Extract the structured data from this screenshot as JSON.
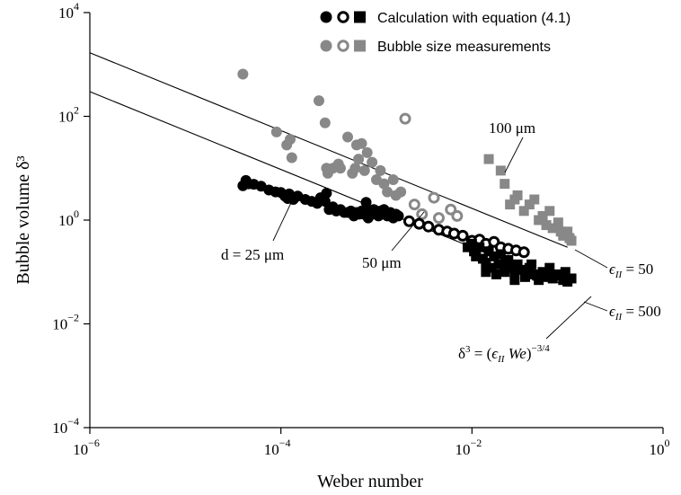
{
  "chart_data": {
    "type": "scatter",
    "xscale": "log",
    "yscale": "log",
    "xlim": [
      1e-06,
      1
    ],
    "ylim": [
      0.0001,
      10000.0
    ],
    "grid": false,
    "legend_position": "top-right",
    "xlabel": "Weber number",
    "ylabel": "Bubble volume δ³",
    "x_ticks": [
      {
        "value": 1e-06,
        "base": "10",
        "exp": "−6"
      },
      {
        "value": 0.0001,
        "base": "10",
        "exp": "−4"
      },
      {
        "value": 0.01,
        "base": "10",
        "exp": "−2"
      },
      {
        "value": 1,
        "base": "10",
        "exp": "0"
      }
    ],
    "y_ticks": [
      {
        "value": 0.0001,
        "base": "10",
        "exp": "−4"
      },
      {
        "value": 0.01,
        "base": "10",
        "exp": "−2"
      },
      {
        "value": 1,
        "base": "10",
        "exp": "0"
      },
      {
        "value": 100,
        "base": "10",
        "exp": "2"
      },
      {
        "value": 10000.0,
        "base": "10",
        "exp": "4"
      }
    ],
    "legend": [
      {
        "label": "Calculation with equation (4.1)",
        "color": "#000000",
        "marker_color": "#000000"
      },
      {
        "label": "Bubble size measurements",
        "color": "#888888",
        "marker_color": "#888888"
      }
    ],
    "series": [
      {
        "group": "calculation",
        "diameter": "25 μm",
        "marker": "filled-circle",
        "color": "#000000",
        "points": [
          [
            4e-05,
            4.6
          ],
          [
            4.3e-05,
            5.8
          ],
          [
            4.6e-05,
            5.0
          ],
          [
            5.2e-05,
            4.9
          ],
          [
            6.2e-05,
            4.5
          ],
          [
            7.5e-05,
            3.8
          ],
          [
            8.8e-05,
            3.5
          ],
          [
            0.0001,
            3.4
          ],
          [
            0.00011,
            2.9
          ],
          [
            0.000118,
            2.6
          ],
          [
            0.000122,
            3.2
          ],
          [
            0.000135,
            2.5
          ],
          [
            0.00015,
            2.9
          ],
          [
            0.00018,
            2.5
          ],
          [
            0.00021,
            2.3
          ],
          [
            0.00024,
            2.1
          ],
          [
            0.00026,
            2.7
          ],
          [
            0.00029,
            2.3
          ],
          [
            0.0003,
            3.3
          ],
          [
            0.00032,
            1.6
          ],
          [
            0.00035,
            1.8
          ],
          [
            0.00038,
            1.5
          ],
          [
            0.00042,
            1.6
          ],
          [
            0.00046,
            1.4
          ],
          [
            0.0005,
            1.4
          ],
          [
            0.00054,
            1.5
          ],
          [
            0.00058,
            1.2
          ],
          [
            0.00062,
            1.4
          ],
          [
            0.00066,
            1.3
          ],
          [
            0.0007,
            1.5
          ],
          [
            0.00074,
            1.3
          ],
          [
            0.00078,
            2.2
          ],
          [
            0.00082,
            1.1
          ],
          [
            0.00086,
            1.5
          ],
          [
            0.0009,
            1.3
          ],
          [
            0.00094,
            1.6
          ],
          [
            0.001,
            1.4
          ],
          [
            0.00105,
            1.2
          ],
          [
            0.0011,
            1.5
          ],
          [
            0.00115,
            1.3
          ],
          [
            0.0012,
            1.6
          ],
          [
            0.0013,
            1.2
          ],
          [
            0.0014,
            1.4
          ],
          [
            0.0015,
            1.1
          ],
          [
            0.0016,
            1.3
          ],
          [
            0.0017,
            1.2
          ]
        ]
      },
      {
        "group": "calculation",
        "diameter": "50 μm",
        "marker": "open-circle",
        "color": "#000000",
        "points": [
          [
            0.0022,
            0.95
          ],
          [
            0.0028,
            0.85
          ],
          [
            0.0035,
            0.75
          ],
          [
            0.0045,
            0.65
          ],
          [
            0.0055,
            0.6
          ],
          [
            0.0065,
            0.55
          ],
          [
            0.008,
            0.5
          ],
          [
            0.01,
            0.4
          ],
          [
            0.012,
            0.42
          ],
          [
            0.014,
            0.35
          ],
          [
            0.017,
            0.38
          ],
          [
            0.02,
            0.3
          ],
          [
            0.024,
            0.28
          ],
          [
            0.029,
            0.26
          ],
          [
            0.035,
            0.24
          ]
        ]
      },
      {
        "group": "calculation",
        "diameter": "100 μm",
        "marker": "filled-square",
        "color": "#000000",
        "points": [
          [
            0.009,
            0.3
          ],
          [
            0.01,
            0.35
          ],
          [
            0.0105,
            0.25
          ],
          [
            0.011,
            0.2
          ],
          [
            0.012,
            0.3
          ],
          [
            0.013,
            0.18
          ],
          [
            0.014,
            0.15
          ],
          [
            0.015,
            0.25
          ],
          [
            0.016,
            0.12
          ],
          [
            0.017,
            0.2
          ],
          [
            0.019,
            0.14
          ],
          [
            0.02,
            0.22
          ],
          [
            0.022,
            0.1
          ],
          [
            0.024,
            0.17
          ],
          [
            0.026,
            0.12
          ],
          [
            0.028,
            0.09
          ],
          [
            0.03,
            0.14
          ],
          [
            0.033,
            0.11
          ],
          [
            0.036,
            0.08
          ],
          [
            0.04,
            0.12
          ],
          [
            0.045,
            0.09
          ],
          [
            0.05,
            0.07
          ],
          [
            0.055,
            0.1
          ],
          [
            0.06,
            0.08
          ],
          [
            0.065,
            0.12
          ],
          [
            0.07,
            0.075
          ],
          [
            0.08,
            0.09
          ],
          [
            0.09,
            0.07
          ],
          [
            0.1,
            0.065
          ],
          [
            0.11,
            0.075
          ],
          [
            0.014,
            0.1
          ],
          [
            0.018,
            0.09
          ],
          [
            0.023,
            0.15
          ],
          [
            0.028,
            0.07
          ],
          [
            0.038,
            0.1
          ],
          [
            0.042,
            0.14
          ],
          [
            0.048,
            0.085
          ],
          [
            0.058,
            0.09
          ],
          [
            0.075,
            0.085
          ],
          [
            0.095,
            0.1
          ]
        ]
      },
      {
        "group": "measurement",
        "diameter": "25 μm",
        "marker": "filled-circle",
        "color": "#888888",
        "points": [
          [
            4e-05,
            650
          ],
          [
            9e-05,
            50
          ],
          [
            0.000115,
            28
          ],
          [
            0.000125,
            36
          ],
          [
            0.00013,
            16
          ],
          [
            0.00025,
            200
          ],
          [
            0.00029,
            75
          ],
          [
            0.0003,
            10
          ],
          [
            0.00031,
            8
          ],
          [
            0.00035,
            10
          ],
          [
            0.0004,
            12
          ],
          [
            0.00042,
            10
          ],
          [
            0.0005,
            40
          ],
          [
            0.00056,
            8
          ],
          [
            0.0006,
            10
          ],
          [
            0.00062,
            28
          ],
          [
            0.00065,
            15
          ],
          [
            0.0007,
            30
          ],
          [
            0.00075,
            9
          ],
          [
            0.0008,
            20
          ],
          [
            0.0009,
            13
          ],
          [
            0.001,
            6
          ],
          [
            0.0011,
            9
          ],
          [
            0.0012,
            5
          ],
          [
            0.0013,
            3.5
          ],
          [
            0.0015,
            6
          ],
          [
            0.0016,
            3.0
          ],
          [
            0.0018,
            3.5
          ]
        ]
      },
      {
        "group": "measurement",
        "diameter": "50 μm",
        "marker": "open-circle",
        "color": "#888888",
        "points": [
          [
            0.002,
            90
          ],
          [
            0.0025,
            2.0
          ],
          [
            0.003,
            1.3
          ],
          [
            0.004,
            2.7
          ],
          [
            0.0045,
            1.1
          ],
          [
            0.006,
            1.6
          ],
          [
            0.007,
            1.2
          ]
        ]
      },
      {
        "group": "measurement",
        "diameter": "100 μm",
        "marker": "filled-square",
        "color": "#888888",
        "points": [
          [
            0.015,
            15
          ],
          [
            0.02,
            9
          ],
          [
            0.022,
            5
          ],
          [
            0.025,
            2
          ],
          [
            0.028,
            2.5
          ],
          [
            0.03,
            3
          ],
          [
            0.035,
            1.5
          ],
          [
            0.04,
            2
          ],
          [
            0.045,
            2.5
          ],
          [
            0.05,
            1.0
          ],
          [
            0.055,
            1.2
          ],
          [
            0.06,
            0.8
          ],
          [
            0.065,
            1.5
          ],
          [
            0.07,
            0.7
          ],
          [
            0.08,
            0.9
          ],
          [
            0.085,
            0.6
          ],
          [
            0.09,
            0.5
          ],
          [
            0.1,
            0.6
          ],
          [
            0.105,
            0.45
          ],
          [
            0.11,
            0.4
          ]
        ]
      }
    ],
    "reference_lines": [
      {
        "label": "ϵ_II = 50",
        "label_main": "ϵ",
        "label_sub": "II",
        "label_rest": " = 50",
        "epsilon": 50,
        "exponent": -0.75,
        "xrange": [
          1e-06,
          0.1
        ]
      },
      {
        "label": "ϵ_II = 500",
        "label_main": "ϵ",
        "label_sub": "II",
        "label_rest": " = 500",
        "epsilon": 500,
        "exponent": -0.75,
        "xrange": [
          1e-06,
          0.1
        ]
      }
    ],
    "annotations": [
      {
        "id": "d25",
        "text": "d = 25 μm"
      },
      {
        "id": "d50",
        "text": "50 μm"
      },
      {
        "id": "d100",
        "text": "100 μm"
      },
      {
        "id": "formula",
        "text": "δ³ = (ϵ_II We)^−3/4"
      }
    ]
  }
}
